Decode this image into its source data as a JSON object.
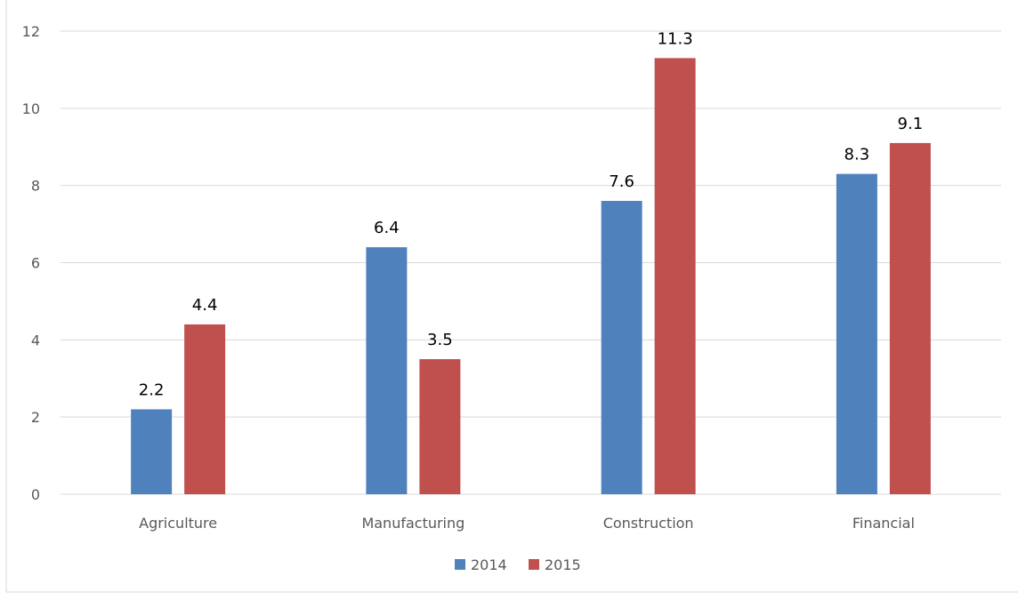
{
  "chart_data": {
    "type": "bar",
    "categories": [
      "Agriculture",
      "Manufacturing",
      "Construction",
      "Financial"
    ],
    "series": [
      {
        "name": "2014",
        "values": [
          2.2,
          6.4,
          7.6,
          8.3
        ],
        "color": "#4f81bd"
      },
      {
        "name": "2015",
        "values": [
          4.4,
          3.5,
          11.3,
          9.1
        ],
        "color": "#c0504d"
      }
    ],
    "ylim": [
      0,
      12
    ],
    "yticks": [
      0,
      2,
      4,
      6,
      8,
      10,
      12
    ],
    "grid": true,
    "data_labels": true,
    "legend": "bottom-center",
    "colors": {
      "grid": "#d9d9d9",
      "axis_text": "#595959",
      "border": "#d9d9d9"
    }
  }
}
